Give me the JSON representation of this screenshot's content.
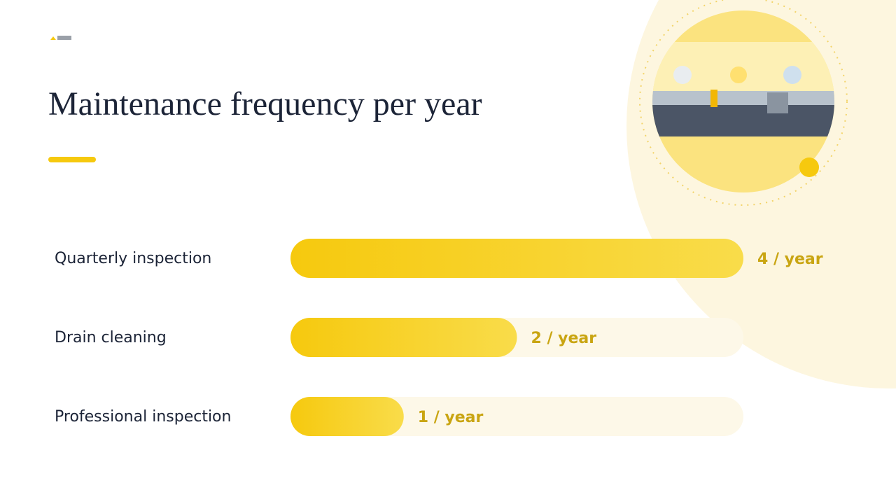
{
  "chart_data": {
    "type": "bar",
    "orientation": "horizontal",
    "title": "Maintenance frequency per year",
    "categories": [
      "Quarterly inspection",
      "Drain cleaning",
      "Professional inspection"
    ],
    "values": [
      4,
      2,
      1
    ],
    "value_labels": [
      "4 / year",
      "2 / year",
      "1 / year"
    ],
    "color": "#f6c90e",
    "xlim": [
      0,
      4
    ]
  }
}
